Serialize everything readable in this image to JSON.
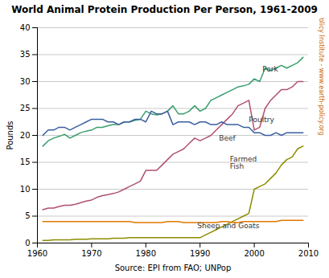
{
  "chart_data": {
    "type": "line",
    "title": "World Animal Protein Production Per Person, 1961-2009",
    "xlabel": "Source: EPI from FAO; UNPop",
    "ylabel": "Pounds",
    "side_label": {
      "text": "Earth Policy Institute - www.earth-policy.org",
      "color": "#cc6600"
    },
    "xlim": [
      1960,
      2010
    ],
    "ylim": [
      0,
      40
    ],
    "xticks": [
      1960,
      1970,
      1980,
      1990,
      2000,
      2010
    ],
    "yticks": [
      0,
      5,
      10,
      15,
      20,
      25,
      30,
      35,
      40
    ],
    "grid": true,
    "x": [
      1961,
      1962,
      1963,
      1964,
      1965,
      1966,
      1967,
      1968,
      1969,
      1970,
      1971,
      1972,
      1973,
      1974,
      1975,
      1976,
      1977,
      1978,
      1979,
      1980,
      1981,
      1982,
      1983,
      1984,
      1985,
      1986,
      1987,
      1988,
      1989,
      1990,
      1991,
      1992,
      1993,
      1994,
      1995,
      1996,
      1997,
      1998,
      1999,
      2000,
      2001,
      2002,
      2003,
      2004,
      2005,
      2006,
      2007,
      2008,
      2009
    ],
    "series": [
      {
        "name": "Pork",
        "color": "#3a9e6e",
        "values": [
          18.0,
          19.0,
          19.5,
          19.8,
          20.2,
          19.5,
          20.0,
          20.5,
          20.8,
          21.0,
          21.5,
          21.5,
          21.8,
          22.0,
          22.0,
          22.5,
          22.5,
          22.8,
          23.0,
          24.5,
          24.0,
          23.8,
          24.0,
          24.5,
          25.5,
          24.0,
          24.0,
          24.5,
          25.5,
          24.5,
          25.0,
          26.5,
          27.0,
          27.5,
          28.0,
          28.5,
          29.0,
          29.2,
          29.5,
          30.5,
          30.0,
          32.5,
          32.0,
          32.5,
          33.0,
          32.5,
          33.0,
          33.5,
          34.5
        ]
      },
      {
        "name": "Beef",
        "color": "#b05070",
        "values": [
          6.2,
          6.5,
          6.5,
          6.8,
          7.0,
          7.0,
          7.2,
          7.5,
          7.8,
          8.0,
          8.5,
          8.8,
          9.0,
          9.2,
          9.5,
          10.0,
          10.5,
          11.0,
          11.5,
          13.5,
          13.5,
          13.5,
          14.5,
          15.5,
          16.5,
          17.0,
          17.5,
          18.5,
          19.5,
          19.0,
          19.5,
          20.0,
          21.0,
          22.0,
          23.0,
          24.0,
          25.5,
          26.0,
          26.5,
          21.0,
          21.5,
          25.0,
          26.5,
          27.5,
          28.5,
          28.5,
          29.0,
          30.0,
          30.0
        ]
      },
      {
        "name": "Poultry",
        "color": "#3a5fa0",
        "values": [
          20.0,
          21.0,
          21.0,
          21.5,
          21.5,
          21.0,
          21.5,
          22.0,
          22.5,
          23.0,
          23.0,
          23.0,
          22.5,
          22.5,
          22.0,
          22.5,
          22.5,
          23.0,
          23.0,
          22.5,
          24.5,
          24.0,
          24.0,
          24.5,
          22.0,
          22.5,
          22.5,
          22.5,
          22.0,
          22.5,
          22.5,
          22.0,
          22.0,
          22.5,
          22.0,
          22.0,
          22.0,
          21.5,
          21.5,
          20.5,
          20.5,
          20.0,
          20.0,
          20.5,
          20.0,
          20.5,
          20.5,
          20.5,
          20.5
        ]
      },
      {
        "name": "Farmed Fish",
        "color": "#8c8c00",
        "values": [
          0.5,
          0.5,
          0.6,
          0.6,
          0.6,
          0.6,
          0.7,
          0.7,
          0.7,
          0.8,
          0.8,
          0.8,
          0.8,
          0.9,
          0.9,
          0.9,
          1.0,
          1.0,
          1.0,
          1.0,
          1.0,
          1.0,
          1.0,
          1.0,
          1.0,
          1.0,
          1.0,
          1.0,
          1.0,
          1.0,
          1.5,
          2.0,
          2.5,
          3.0,
          3.5,
          4.0,
          4.5,
          5.0,
          5.5,
          10.0,
          10.5,
          11.0,
          12.0,
          13.0,
          14.5,
          15.5,
          16.0,
          17.5,
          18.0
        ]
      },
      {
        "name": "Sheep and Goats",
        "color": "#e07800",
        "values": [
          4.0,
          4.0,
          4.0,
          4.0,
          4.0,
          4.0,
          4.0,
          4.0,
          4.0,
          4.0,
          4.0,
          4.0,
          4.0,
          4.0,
          4.0,
          4.0,
          4.0,
          3.8,
          3.8,
          3.8,
          3.8,
          3.8,
          3.8,
          4.0,
          4.0,
          4.0,
          3.8,
          3.8,
          3.8,
          3.8,
          3.8,
          3.8,
          3.8,
          4.0,
          4.0,
          3.8,
          3.8,
          4.0,
          4.0,
          4.0,
          4.0,
          4.0,
          4.0,
          4.0,
          4.2,
          4.2,
          4.2,
          4.2,
          4.2
        ]
      }
    ],
    "annotations": [
      {
        "text": "Pork",
        "x": 2001.5,
        "y": 31.8,
        "color": "#333333"
      },
      {
        "text": "Poultry",
        "x": 1999.0,
        "y": 22.5,
        "color": "#333333"
      },
      {
        "text": "Beef",
        "x": 1993.5,
        "y": 19.0,
        "color": "#333333"
      },
      {
        "text": "Farmed\nFish",
        "x": 1995.5,
        "y": 13.8,
        "color": "#333333"
      },
      {
        "text": "Sheep and Goats",
        "x": 1989.5,
        "y": 2.8,
        "color": "#333333"
      }
    ]
  }
}
